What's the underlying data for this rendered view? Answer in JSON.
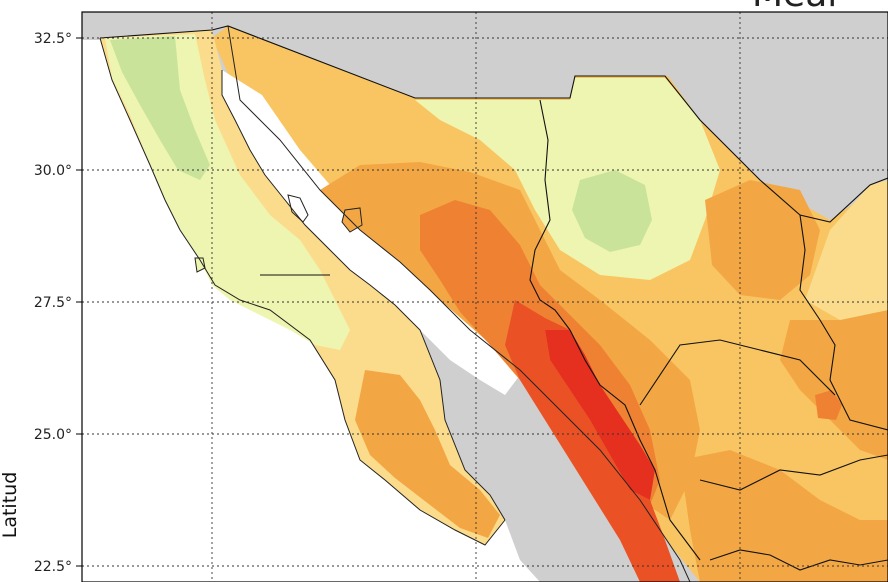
{
  "title_fragment": "Meal",
  "yaxis": {
    "label": "Latitud",
    "ticks": [
      "32.5°",
      "30.0°",
      "27.5°",
      "25.0°",
      "22.5°"
    ]
  },
  "colors": {
    "background_land": "#cfcfcf",
    "sea": "#ffffff",
    "level_1": "#c9e49a",
    "level_2": "#eef5b0",
    "level_3": "#fbdc8c",
    "level_4": "#f8c562",
    "level_5": "#f3a744",
    "level_6": "#ef8232",
    "level_7": "#ea5125",
    "level_8": "#e5301f"
  }
}
